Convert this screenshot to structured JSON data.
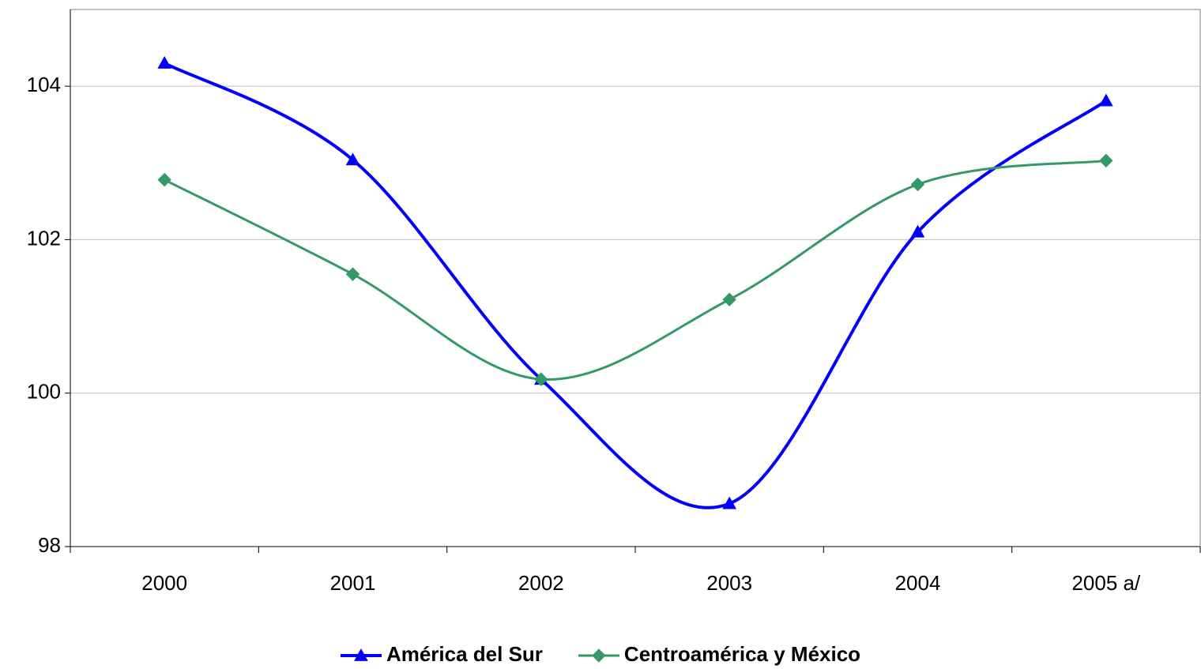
{
  "chart_data": {
    "type": "line",
    "categories": [
      "2000",
      "2001",
      "2002",
      "2003",
      "2004",
      "2005 a/"
    ],
    "series": [
      {
        "name": "América del Sur",
        "color": "#0000ff",
        "marker": "triangle",
        "values": [
          104.3,
          103.04,
          100.18,
          98.56,
          102.1,
          103.81
        ]
      },
      {
        "name": "Centroamérica y México",
        "color": "#339966",
        "marker": "diamond",
        "values": [
          102.78,
          101.55,
          100.18,
          101.22,
          102.72,
          103.03
        ]
      }
    ],
    "ylim": [
      98,
      105
    ],
    "yticks": [
      98,
      100,
      102,
      104
    ],
    "grid": true,
    "smooth": true,
    "legend": "bottom"
  }
}
